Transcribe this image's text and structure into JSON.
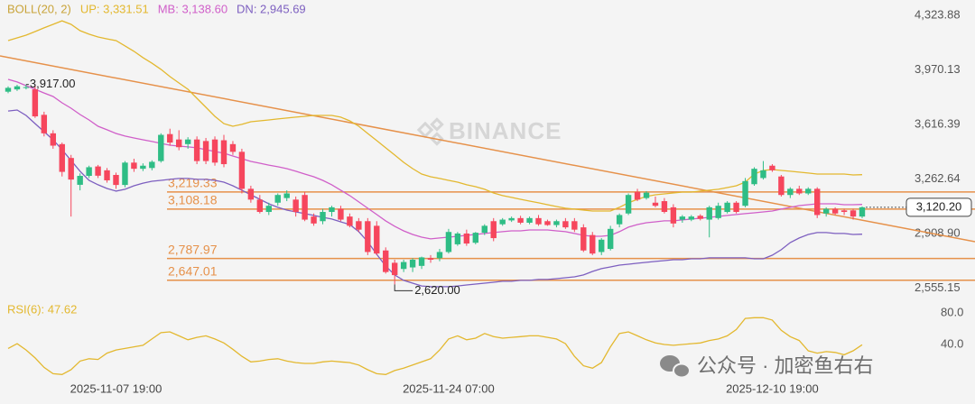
{
  "chart_data": {
    "type": "candlestick",
    "categories": [
      null,
      null,
      null,
      null,
      null,
      null,
      null,
      null,
      null,
      null,
      null,
      null,
      "2025-11-07 19:00",
      null,
      null,
      null,
      null,
      null,
      null,
      null,
      null,
      null,
      null,
      null,
      null,
      null,
      null,
      null,
      null,
      null,
      null,
      null,
      null,
      null,
      null,
      null,
      null,
      null,
      null,
      null,
      null,
      null,
      null,
      null,
      null,
      null,
      null,
      null,
      null,
      "2025-11-24 07:00",
      null,
      null,
      null,
      null,
      null,
      null,
      null,
      null,
      null,
      null,
      null,
      null,
      null,
      null,
      null,
      null,
      null,
      null,
      null,
      null,
      null,
      null,
      null,
      null,
      null,
      null,
      null,
      null,
      null,
      null,
      null,
      null,
      null,
      null,
      null,
      "2025-12-10 19:00",
      null,
      null,
      null,
      null,
      null,
      null,
      null,
      null,
      null,
      null
    ],
    "ohlc": [
      [
        3870,
        3905,
        3860,
        3895
      ],
      [
        3885,
        3915,
        3875,
        3905
      ],
      [
        3895,
        3917,
        3885,
        3900
      ],
      [
        3885,
        3910,
        3700,
        3710
      ],
      [
        3720,
        3740,
        3580,
        3600
      ],
      [
        3600,
        3620,
        3500,
        3520
      ],
      [
        3530,
        3540,
        3320,
        3350
      ],
      [
        3440,
        3460,
        3060,
        3300
      ],
      [
        3266,
        3340,
        3230,
        3324
      ],
      [
        3324,
        3390,
        3310,
        3380
      ],
      [
        3385,
        3395,
        3310,
        3325
      ],
      [
        3360,
        3375,
        3280,
        3295
      ],
      [
        3330,
        3345,
        3240,
        3265
      ],
      [
        3265,
        3420,
        3250,
        3410
      ],
      [
        3410,
        3435,
        3350,
        3370
      ],
      [
        3370,
        3405,
        3355,
        3390
      ],
      [
        3375,
        3425,
        3360,
        3415
      ],
      [
        3420,
        3600,
        3410,
        3590
      ],
      [
        3595,
        3630,
        3520,
        3540
      ],
      [
        3560,
        3620,
        3490,
        3510
      ],
      [
        3530,
        3575,
        3500,
        3560
      ],
      [
        3560,
        3580,
        3400,
        3420
      ],
      [
        3550,
        3570,
        3400,
        3420
      ],
      [
        3560,
        3580,
        3390,
        3410
      ],
      [
        3555,
        3590,
        3380,
        3400
      ],
      [
        3530,
        3550,
        3460,
        3480
      ],
      [
        3480,
        3500,
        3210,
        3240
      ],
      [
        3240,
        3260,
        3150,
        3170
      ],
      [
        3170,
        3200,
        3080,
        3090
      ],
      [
        3090,
        3150,
        3070,
        3130
      ],
      [
        3150,
        3210,
        3130,
        3200
      ],
      [
        3180,
        3230,
        3160,
        3210
      ],
      [
        3170,
        3190,
        3060,
        3090
      ],
      [
        3200,
        3220,
        3030,
        3040
      ],
      [
        3060,
        3080,
        3000,
        3015
      ],
      [
        3030,
        3110,
        3010,
        3090
      ],
      [
        3090,
        3130,
        3060,
        3120
      ],
      [
        3110,
        3130,
        3030,
        3040
      ],
      [
        3060,
        3080,
        2990,
        3000
      ],
      [
        3030,
        3050,
        2960,
        2975
      ],
      [
        3030,
        3050,
        2810,
        2830
      ],
      [
        3000,
        3030,
        2810,
        2820
      ],
      [
        2840,
        2860,
        2690,
        2700
      ],
      [
        2760,
        2780,
        2620,
        2680
      ],
      [
        2720,
        2780,
        2700,
        2765
      ],
      [
        2730,
        2790,
        2700,
        2780
      ],
      [
        2740,
        2800,
        2720,
        2795
      ],
      [
        2790,
        2810,
        2760,
        2780
      ],
      [
        2790,
        2850,
        2770,
        2830
      ],
      [
        2830,
        2980,
        2820,
        2960
      ],
      [
        2880,
        2960,
        2870,
        2950
      ],
      [
        2950,
        2975,
        2870,
        2885
      ],
      [
        2890,
        2960,
        2880,
        2955
      ],
      [
        2955,
        3010,
        2940,
        3000
      ],
      [
        3030,
        3050,
        2900,
        2920
      ],
      [
        3010,
        3050,
        3000,
        3040
      ],
      [
        3035,
        3060,
        3025,
        3050
      ],
      [
        3050,
        3065,
        3010,
        3020
      ],
      [
        3020,
        3060,
        3010,
        3050
      ],
      [
        3050,
        3070,
        3000,
        3010
      ],
      [
        3030,
        3040,
        3000,
        3005
      ],
      [
        3005,
        3040,
        2990,
        3030
      ],
      [
        3030,
        3050,
        2980,
        2990
      ],
      [
        3030,
        3050,
        2960,
        2975
      ],
      [
        2990,
        3010,
        2830,
        2840
      ],
      [
        2940,
        2960,
        2810,
        2820
      ],
      [
        2830,
        2920,
        2810,
        2910
      ],
      [
        2850,
        3000,
        2840,
        2980
      ],
      [
        3010,
        3080,
        2990,
        3070
      ],
      [
        3080,
        3210,
        3070,
        3200
      ],
      [
        3220,
        3240,
        3160,
        3170
      ],
      [
        3180,
        3225,
        3170,
        3215
      ],
      [
        3150,
        3190,
        3120,
        3130
      ],
      [
        3160,
        3180,
        3080,
        3090
      ],
      [
        3120,
        3140,
        2990,
        3015
      ],
      [
        3040,
        3070,
        3020,
        3060
      ],
      [
        3040,
        3070,
        3030,
        3060
      ],
      [
        3065,
        3075,
        3035,
        3045
      ],
      [
        3040,
        3130,
        2925,
        3120
      ],
      [
        3050,
        3150,
        3040,
        3130
      ],
      [
        3090,
        3160,
        3080,
        3150
      ],
      [
        3150,
        3160,
        3080,
        3090
      ],
      [
        3130,
        3310,
        3120,
        3290
      ],
      [
        3270,
        3380,
        3260,
        3370
      ],
      [
        3310,
        3420,
        3300,
        3360
      ],
      [
        3390,
        3400,
        3350,
        3360
      ],
      [
        3320,
        3330,
        3190,
        3200
      ],
      [
        3200,
        3250,
        3180,
        3240
      ],
      [
        3240,
        3260,
        3200,
        3210
      ],
      [
        3210,
        3250,
        3200,
        3240
      ],
      [
        3240,
        3250,
        3050,
        3070
      ],
      [
        3080,
        3120,
        3060,
        3110
      ],
      [
        3110,
        3120,
        3070,
        3080
      ],
      [
        3100,
        3110,
        3070,
        3090
      ],
      [
        3100,
        3110,
        3040,
        3060
      ],
      [
        3060,
        3125,
        3050,
        3120.2
      ]
    ],
    "up_color": "#2ebd85",
    "down_color": "#f6465d",
    "ylim": [
      2505,
      4465
    ],
    "yticks": [
      {
        "value": 4323.88,
        "label": "4,323.88"
      },
      {
        "value": 3970.13,
        "label": "3,970.13"
      },
      {
        "value": 3616.39,
        "label": "3,616.39"
      },
      {
        "value": 3262.64,
        "label": "3,262.64"
      },
      {
        "value": 2908.9,
        "label": "2,908.90"
      },
      {
        "value": 2555.15,
        "label": "2,555.15"
      }
    ],
    "indicator_title": "BOLL(20, 2)",
    "series": [
      {
        "name": "UP: 3,331.51",
        "color": "#e3b82f",
        "values": [
          4202,
          4219,
          4237,
          4260,
          4284,
          4307,
          4330,
          4307,
          4266,
          4243,
          4225,
          4213,
          4202,
          4167,
          4132,
          4091,
          4055,
          4015,
          3968,
          3927,
          3886,
          3827,
          3769,
          3710,
          3663,
          3646,
          3658,
          3675,
          3681,
          3687,
          3693,
          3699,
          3705,
          3710,
          3716,
          3716,
          3716,
          3705,
          3681,
          3646,
          3599,
          3553,
          3506,
          3459,
          3412,
          3371,
          3336,
          3318,
          3307,
          3295,
          3283,
          3266,
          3254,
          3237,
          3213,
          3196,
          3184,
          3172,
          3160,
          3149,
          3137,
          3125,
          3114,
          3108,
          3102,
          3096,
          3096,
          3096,
          3120,
          3149,
          3172,
          3190,
          3201,
          3207,
          3213,
          3219,
          3219,
          3225,
          3231,
          3237,
          3248,
          3260,
          3283,
          3336,
          3359,
          3365,
          3359,
          3354,
          3348,
          3342,
          3336,
          3336,
          3336,
          3336,
          3330,
          3331.51
        ]
      },
      {
        "name": "MB: 3,138.60",
        "color": "#d05fc9",
        "values": [
          3950,
          3933,
          3909,
          3886,
          3862,
          3839,
          3798,
          3763,
          3722,
          3687,
          3646,
          3623,
          3599,
          3582,
          3570,
          3558,
          3547,
          3535,
          3523,
          3517,
          3512,
          3506,
          3494,
          3482,
          3471,
          3453,
          3435,
          3418,
          3406,
          3394,
          3383,
          3371,
          3354,
          3336,
          3318,
          3295,
          3266,
          3231,
          3196,
          3155,
          3114,
          3073,
          3032,
          2997,
          2967,
          2944,
          2926,
          2915,
          2921,
          2926,
          2932,
          2938,
          2944,
          2950,
          2956,
          2962,
          2967,
          2967,
          2973,
          2973,
          2973,
          2967,
          2962,
          2950,
          2938,
          2932,
          2932,
          2938,
          2962,
          2991,
          3008,
          3020,
          3026,
          3032,
          3032,
          3038,
          3044,
          3049,
          3055,
          3061,
          3067,
          3073,
          3079,
          3084,
          3090,
          3096,
          3108,
          3120,
          3131,
          3137,
          3143,
          3143,
          3143,
          3137,
          3137,
          3138.6
        ]
      },
      {
        "name": "DN: 2,945.69",
        "color": "#7d5fc0",
        "values": [
          3745,
          3751,
          3716,
          3663,
          3611,
          3558,
          3494,
          3424,
          3354,
          3295,
          3266,
          3242,
          3225,
          3237,
          3260,
          3277,
          3289,
          3295,
          3301,
          3307,
          3307,
          3301,
          3301,
          3295,
          3283,
          3260,
          3231,
          3201,
          3172,
          3143,
          3120,
          3102,
          3090,
          3079,
          3067,
          3055,
          3044,
          3026,
          3008,
          2962,
          2897,
          2815,
          2739,
          2681,
          2646,
          2628,
          2610,
          2605,
          2605,
          2605,
          2610,
          2616,
          2622,
          2628,
          2634,
          2640,
          2640,
          2646,
          2646,
          2652,
          2652,
          2657,
          2663,
          2669,
          2681,
          2704,
          2722,
          2733,
          2745,
          2751,
          2757,
          2763,
          2769,
          2774,
          2780,
          2780,
          2786,
          2786,
          2792,
          2792,
          2792,
          2792,
          2792,
          2786,
          2786,
          2809,
          2845,
          2891,
          2921,
          2944,
          2956,
          2956,
          2950,
          2950,
          2944,
          2945.69
        ]
      }
    ],
    "indicator_title_color": "#c9a43a",
    "trendline": {
      "color": "#e6914a",
      "values": [
        4102,
        2897
      ]
    },
    "level_color": "#e6914a",
    "levels": [
      {
        "value": 3219.33,
        "label": "3,219.33"
      },
      {
        "value": 3108.18,
        "label": "3,108.18"
      },
      {
        "value": 2787.97,
        "label": "2,787.97"
      },
      {
        "value": 2647.01,
        "label": "2,647.01"
      }
    ],
    "high_annotation": {
      "value": 3917,
      "label": "3,917.00"
    },
    "low_annotation": {
      "value": 2620,
      "label": "2,620.00"
    },
    "last_price": {
      "value": 3120.2,
      "label": "3,120.20"
    },
    "watermark": "BINANCE",
    "rsi": {
      "type": "line",
      "name": "RSI(6): 47.62",
      "color": "#e3b82f",
      "ylim": [
        0,
        100
      ],
      "yticks": [
        {
          "value": 80,
          "label": "80.0"
        },
        {
          "value": 40,
          "label": "40.0"
        }
      ],
      "values": [
        43,
        49,
        41,
        31,
        19,
        11,
        10,
        16,
        27,
        30,
        29,
        37,
        41,
        43,
        45,
        47,
        55,
        63,
        64,
        59,
        54,
        57,
        59,
        55,
        50,
        42,
        33,
        26,
        27,
        29,
        30,
        27,
        25,
        24,
        24,
        26,
        27,
        26,
        25,
        22,
        16,
        11,
        10,
        15,
        18,
        22,
        26,
        30,
        41,
        55,
        59,
        54,
        56,
        62,
        58,
        56,
        57,
        58,
        59,
        59,
        57,
        55,
        49,
        33,
        21,
        18,
        25,
        45,
        62,
        64,
        59,
        54,
        50,
        48,
        47,
        48,
        49,
        50,
        53,
        55,
        59,
        67,
        81,
        82,
        82,
        79,
        66,
        58,
        53,
        40,
        37,
        39,
        38,
        35,
        40,
        47.62
      ]
    }
  },
  "overlay": {
    "account_watermark": "公众号 · 加密鱼右右"
  }
}
